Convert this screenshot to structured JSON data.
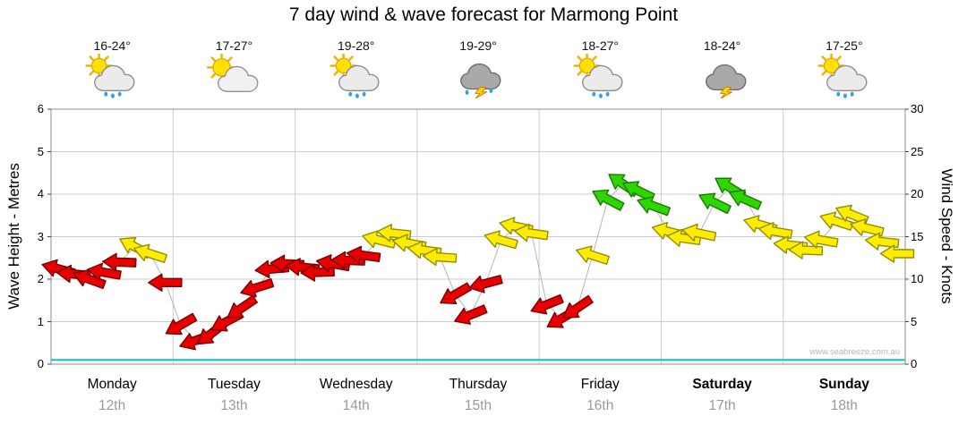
{
  "title": "7 day wind & wave forecast for Marmong Point",
  "watermark": "www.seabreeze.com.au",
  "days": [
    {
      "name": "Monday",
      "date": "12th",
      "temp": "16-24°",
      "icon": "sun-cloud-rain",
      "bold": false
    },
    {
      "name": "Tuesday",
      "date": "13th",
      "temp": "17-27°",
      "icon": "sun-cloud",
      "bold": false
    },
    {
      "name": "Wednesday",
      "date": "14th",
      "temp": "19-28°",
      "icon": "sun-cloud-rain",
      "bold": false
    },
    {
      "name": "Thursday",
      "date": "15th",
      "temp": "19-29°",
      "icon": "storm-rain",
      "bold": false
    },
    {
      "name": "Friday",
      "date": "16th",
      "temp": "18-27°",
      "icon": "sun-cloud-rain",
      "bold": false
    },
    {
      "name": "Saturday",
      "date": "17th",
      "temp": "18-24°",
      "icon": "storm",
      "bold": true
    },
    {
      "name": "Sunday",
      "date": "18th",
      "temp": "17-25°",
      "icon": "sun-cloud-rain",
      "bold": true
    }
  ],
  "chart_data": {
    "type": "line",
    "title": "7 day wind & wave forecast for Marmong Point",
    "left_axis": {
      "label": "Wave Height - Metres",
      "range": [
        0,
        6
      ],
      "ticks": [
        0,
        1,
        2,
        3,
        4,
        5,
        6
      ]
    },
    "right_axis": {
      "label": "Wind Speed - Knots",
      "range": [
        0,
        30
      ],
      "ticks": [
        0,
        5,
        10,
        15,
        20,
        25,
        30
      ]
    },
    "x_days": [
      "Monday 12th",
      "Tuesday 13th",
      "Wednesday 14th",
      "Thursday 15th",
      "Friday 16th",
      "Saturday 17th",
      "Sunday 18th"
    ],
    "slots_per_day": 8,
    "wave_height_m": [
      0.1,
      0.1,
      0.1,
      0.1,
      0.1,
      0.1,
      0.1
    ],
    "wind_arrows": [
      {
        "day": 0,
        "slot": 0,
        "knots": 11.2,
        "color": "red",
        "angle": 195
      },
      {
        "day": 0,
        "slot": 1,
        "knots": 10.6,
        "color": "red",
        "angle": 185
      },
      {
        "day": 0,
        "slot": 2,
        "knots": 10.0,
        "color": "red",
        "angle": 200
      },
      {
        "day": 0,
        "slot": 3,
        "knots": 10.8,
        "color": "red",
        "angle": 190
      },
      {
        "day": 0,
        "slot": 4,
        "knots": 12.0,
        "color": "red",
        "angle": 182
      },
      {
        "day": 0,
        "slot": 5,
        "knots": 13.8,
        "color": "yellow",
        "angle": 208
      },
      {
        "day": 0,
        "slot": 6,
        "knots": 13.0,
        "color": "yellow",
        "angle": 198
      },
      {
        "day": 0,
        "slot": 7,
        "knots": 9.6,
        "color": "red",
        "angle": 180
      },
      {
        "day": 1,
        "slot": 0,
        "knots": 4.6,
        "color": "red",
        "angle": 150
      },
      {
        "day": 1,
        "slot": 1,
        "knots": 2.8,
        "color": "red",
        "angle": 160
      },
      {
        "day": 1,
        "slot": 2,
        "knots": 3.6,
        "color": "red",
        "angle": 142
      },
      {
        "day": 1,
        "slot": 3,
        "knots": 5.0,
        "color": "red",
        "angle": 152
      },
      {
        "day": 1,
        "slot": 4,
        "knots": 6.6,
        "color": "red",
        "angle": 146
      },
      {
        "day": 1,
        "slot": 5,
        "knots": 9.0,
        "color": "red",
        "angle": 162
      },
      {
        "day": 1,
        "slot": 6,
        "knots": 11.2,
        "color": "red",
        "angle": 175
      },
      {
        "day": 1,
        "slot": 7,
        "knots": 11.8,
        "color": "red",
        "angle": 183
      },
      {
        "day": 2,
        "slot": 0,
        "knots": 11.4,
        "color": "red",
        "angle": 186
      },
      {
        "day": 2,
        "slot": 1,
        "knots": 10.8,
        "color": "red",
        "angle": 178
      },
      {
        "day": 2,
        "slot": 2,
        "knots": 11.8,
        "color": "red",
        "angle": 190
      },
      {
        "day": 2,
        "slot": 3,
        "knots": 12.2,
        "color": "red",
        "angle": 182
      },
      {
        "day": 2,
        "slot": 4,
        "knots": 12.8,
        "color": "red",
        "angle": 188
      },
      {
        "day": 2,
        "slot": 5,
        "knots": 14.6,
        "color": "yellow",
        "angle": 194
      },
      {
        "day": 2,
        "slot": 6,
        "knots": 15.4,
        "color": "yellow",
        "angle": 186
      },
      {
        "day": 2,
        "slot": 7,
        "knots": 14.2,
        "color": "yellow",
        "angle": 190
      },
      {
        "day": 3,
        "slot": 0,
        "knots": 13.4,
        "color": "yellow",
        "angle": 188
      },
      {
        "day": 3,
        "slot": 1,
        "knots": 12.6,
        "color": "yellow",
        "angle": 184
      },
      {
        "day": 3,
        "slot": 2,
        "knots": 8.2,
        "color": "red",
        "angle": 150
      },
      {
        "day": 3,
        "slot": 3,
        "knots": 5.8,
        "color": "red",
        "angle": 158
      },
      {
        "day": 3,
        "slot": 4,
        "knots": 9.5,
        "color": "red",
        "angle": 165
      },
      {
        "day": 3,
        "slot": 5,
        "knots": 14.6,
        "color": "yellow",
        "angle": 196
      },
      {
        "day": 3,
        "slot": 6,
        "knots": 16.2,
        "color": "yellow",
        "angle": 192
      },
      {
        "day": 3,
        "slot": 7,
        "knots": 15.4,
        "color": "yellow",
        "angle": 188
      },
      {
        "day": 4,
        "slot": 0,
        "knots": 7.0,
        "color": "red",
        "angle": 158
      },
      {
        "day": 4,
        "slot": 1,
        "knots": 5.4,
        "color": "red",
        "angle": 150
      },
      {
        "day": 4,
        "slot": 2,
        "knots": 6.6,
        "color": "red",
        "angle": 146
      },
      {
        "day": 4,
        "slot": 3,
        "knots": 12.8,
        "color": "yellow",
        "angle": 198
      },
      {
        "day": 4,
        "slot": 4,
        "knots": 19.4,
        "color": "green",
        "angle": 208
      },
      {
        "day": 4,
        "slot": 5,
        "knots": 21.2,
        "color": "green",
        "angle": 214
      },
      {
        "day": 4,
        "slot": 6,
        "knots": 20.4,
        "color": "green",
        "angle": 206
      },
      {
        "day": 4,
        "slot": 7,
        "knots": 18.6,
        "color": "green",
        "angle": 200
      },
      {
        "day": 5,
        "slot": 0,
        "knots": 15.6,
        "color": "yellow",
        "angle": 194
      },
      {
        "day": 5,
        "slot": 1,
        "knots": 14.8,
        "color": "yellow",
        "angle": 188
      },
      {
        "day": 5,
        "slot": 2,
        "knots": 15.4,
        "color": "yellow",
        "angle": 192
      },
      {
        "day": 5,
        "slot": 3,
        "knots": 19.0,
        "color": "green",
        "angle": 206
      },
      {
        "day": 5,
        "slot": 4,
        "knots": 20.8,
        "color": "green",
        "angle": 212
      },
      {
        "day": 5,
        "slot": 5,
        "knots": 19.4,
        "color": "green",
        "angle": 204
      },
      {
        "day": 5,
        "slot": 6,
        "knots": 16.4,
        "color": "yellow",
        "angle": 196
      },
      {
        "day": 5,
        "slot": 7,
        "knots": 15.6,
        "color": "yellow",
        "angle": 190
      },
      {
        "day": 6,
        "slot": 0,
        "knots": 14.0,
        "color": "yellow",
        "angle": 186
      },
      {
        "day": 6,
        "slot": 1,
        "knots": 13.4,
        "color": "yellow",
        "angle": 182
      },
      {
        "day": 6,
        "slot": 2,
        "knots": 14.6,
        "color": "yellow",
        "angle": 190
      },
      {
        "day": 6,
        "slot": 3,
        "knots": 16.8,
        "color": "yellow",
        "angle": 198
      },
      {
        "day": 6,
        "slot": 4,
        "knots": 17.6,
        "color": "yellow",
        "angle": 202
      },
      {
        "day": 6,
        "slot": 5,
        "knots": 16.0,
        "color": "yellow",
        "angle": 194
      },
      {
        "day": 6,
        "slot": 6,
        "knots": 14.4,
        "color": "yellow",
        "angle": 186
      },
      {
        "day": 6,
        "slot": 7,
        "knots": 13.0,
        "color": "yellow",
        "angle": 180
      }
    ]
  },
  "colors": {
    "arrow_red": "#e60000",
    "arrow_red_outline": "#7a0000",
    "arrow_yellow": "#ffec00",
    "arrow_yellow_outline": "#8f8f00",
    "arrow_green": "#2fd500",
    "arrow_green_outline": "#1a7a00",
    "wave_line": "#00c8c8",
    "grid": "#cccccc",
    "border": "#8c8c8c",
    "connector": "#b5b5b5",
    "date_text": "#9a9a9a"
  }
}
